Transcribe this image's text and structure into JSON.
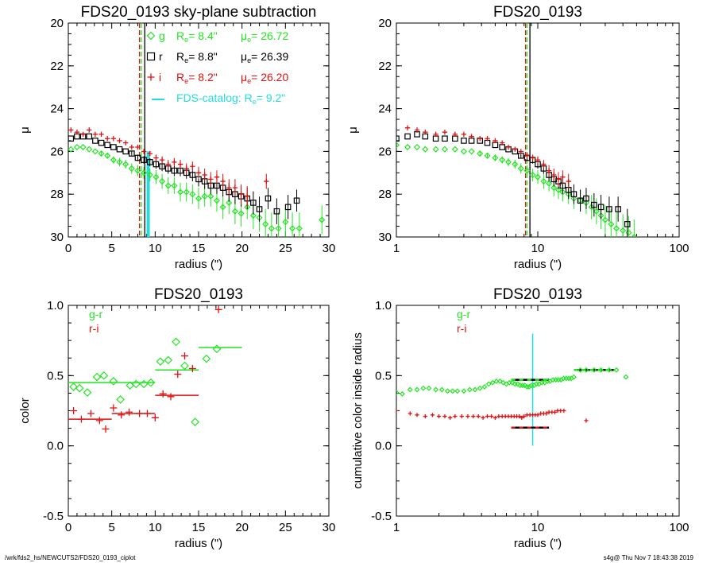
{
  "footer": {
    "left": "/wrk/fds2_hs/NEWCUTS2/FDS20_0193_ciplot",
    "right": "s4g@  Thu Nov  7 18:43:38 2019"
  },
  "colors": {
    "g": "#22e622",
    "r": "#000000",
    "i": "#e01010",
    "cat": "#22dddd",
    "axis": "#000000"
  },
  "chart_data": [
    {
      "type": "scatter",
      "title": "FDS20_0193 sky-plane subtraction",
      "xlabel": "radius (\")",
      "ylabel": "μ",
      "xlim": [
        0,
        30
      ],
      "ylim": [
        30,
        20
      ],
      "xticks": [
        0,
        5,
        10,
        15,
        20,
        25,
        30
      ],
      "yticks": [
        20,
        22,
        24,
        26,
        28,
        30
      ],
      "legend": {
        "g": {
          "band": "g",
          "re_label": "R",
          "re_value": "8.4\"",
          "mu_label": "μ",
          "mu_value": "26.72"
        },
        "r": {
          "band": "r",
          "re_label": "R",
          "re_value": "8.8\"",
          "mu_label": "μ",
          "mu_value": "26.39"
        },
        "i": {
          "band": "i",
          "re_label": "R",
          "re_value": "8.2\"",
          "mu_label": "μ",
          "mu_value": "26.20"
        },
        "catalog": {
          "text": "FDS-catalog: R",
          "value": "9.2\""
        }
      },
      "vlines": [
        {
          "series": "g",
          "x": 8.4,
          "style": "dashed"
        },
        {
          "series": "r",
          "x": 8.8,
          "style": "solid"
        },
        {
          "series": "i",
          "x": 8.2,
          "style": "dashed"
        }
      ],
      "catalog_bar": {
        "x": 9.2,
        "y_from": 26.0,
        "y_to": 30
      },
      "series": [
        {
          "name": "g",
          "marker": "diamond",
          "x": [
            0.3,
            1,
            1.7,
            2.4,
            3.1,
            3.8,
            4.5,
            5.2,
            5.9,
            6.6,
            7.3,
            8,
            8.7,
            9.4,
            10.1,
            10.8,
            11.5,
            12.2,
            12.9,
            13.6,
            14.3,
            15,
            15.7,
            16.4,
            17.1,
            17.8,
            18.5,
            19.2,
            19.9,
            20.6,
            21.3,
            22,
            22.7,
            23.4,
            24.2,
            25,
            25.8,
            26.6,
            29.2
          ],
          "y": [
            25.9,
            25.8,
            25.8,
            25.9,
            26.0,
            26.1,
            26.2,
            26.4,
            26.5,
            26.6,
            26.8,
            26.9,
            27.0,
            27.1,
            27.2,
            27.4,
            27.6,
            27.6,
            27.9,
            27.9,
            28.0,
            28.2,
            28.1,
            28.1,
            28.3,
            28.6,
            28.4,
            28.8,
            28.9,
            28.6,
            29.0,
            29.1,
            29.4,
            29.6,
            29.6,
            29.3,
            29.6,
            29.6,
            29.2
          ]
        },
        {
          "name": "r",
          "marker": "square",
          "x": [
            0.3,
            1,
            1.7,
            2.4,
            3.1,
            3.8,
            4.5,
            5.2,
            5.9,
            6.6,
            7.3,
            8,
            8.7,
            9.4,
            10.1,
            10.8,
            11.5,
            12.2,
            12.9,
            13.6,
            14.3,
            15,
            15.7,
            16.4,
            17.1,
            17.8,
            18.5,
            19.2,
            19.9,
            20.6,
            21.3,
            22,
            23,
            24,
            25.3,
            26.3
          ],
          "y": [
            25.4,
            25.3,
            25.3,
            25.3,
            25.5,
            25.6,
            25.7,
            25.8,
            25.9,
            26.0,
            26.1,
            26.3,
            26.4,
            26.5,
            26.6,
            26.7,
            26.8,
            26.9,
            26.9,
            27.0,
            27.1,
            27.3,
            27.4,
            27.6,
            27.6,
            27.7,
            27.9,
            28.0,
            28.1,
            28.2,
            28.4,
            28.7,
            28.2,
            28.8,
            28.6,
            28.3
          ]
        },
        {
          "name": "i",
          "marker": "plus",
          "x": [
            0.3,
            1,
            1.7,
            2.4,
            3.1,
            3.8,
            4.5,
            5.2,
            5.9,
            6.6,
            7.3,
            8,
            8.7,
            9.4,
            10.1,
            10.8,
            11.5,
            12.2,
            12.9,
            13.6,
            14.3,
            15,
            15.7,
            16.4,
            17.1,
            17.8,
            18.5,
            19.2,
            19.9,
            20.6,
            22.8
          ],
          "y": [
            25.0,
            25.1,
            25.2,
            25.0,
            25.2,
            25.2,
            25.4,
            25.4,
            25.5,
            25.6,
            25.8,
            25.8,
            26.0,
            26.1,
            26.3,
            26.4,
            26.6,
            26.5,
            26.6,
            26.8,
            26.7,
            27.0,
            27.1,
            27.3,
            27.2,
            27.4,
            27.7,
            27.7,
            28.0,
            28.1,
            27.4
          ]
        }
      ]
    },
    {
      "type": "scatter",
      "title": "FDS20_0193",
      "xlabel": "radius (\")",
      "ylabel": "μ",
      "xscale": "log",
      "xlim": [
        1,
        100
      ],
      "ylim": [
        30,
        20
      ],
      "xticks": [
        1,
        10,
        100
      ],
      "yticks": [
        20,
        22,
        24,
        26,
        28,
        30
      ],
      "vlines": [
        {
          "series": "g",
          "x": 8.4,
          "style": "dashed"
        },
        {
          "series": "r",
          "x": 8.8,
          "style": "solid"
        },
        {
          "series": "i",
          "x": 8.2,
          "style": "dashed"
        }
      ],
      "series": [
        {
          "name": "g",
          "marker": "diamond",
          "x": [
            1,
            1.2,
            1.4,
            1.6,
            1.9,
            2.2,
            2.6,
            3.0,
            3.4,
            3.9,
            4.4,
            5.0,
            5.6,
            6.2,
            6.9,
            7.6,
            8.4,
            9.2,
            10,
            11,
            12,
            13,
            14,
            15,
            16.5,
            18,
            20,
            22,
            24,
            26,
            28,
            30,
            33,
            36,
            40,
            44,
            48
          ],
          "y": [
            25.7,
            25.8,
            25.8,
            25.9,
            25.9,
            25.9,
            25.9,
            26.0,
            26.0,
            26.1,
            26.2,
            26.3,
            26.4,
            26.5,
            26.6,
            26.8,
            26.9,
            27.1,
            27.2,
            27.4,
            27.5,
            27.7,
            27.8,
            27.9,
            28.0,
            28.2,
            28.3,
            28.4,
            28.6,
            28.8,
            29.0,
            29.2,
            29.4,
            29.6,
            29.7,
            29.8,
            30.0
          ]
        },
        {
          "name": "r",
          "marker": "square",
          "x": [
            1,
            1.2,
            1.4,
            1.6,
            1.9,
            2.2,
            2.6,
            3.0,
            3.4,
            3.9,
            4.4,
            5.0,
            5.6,
            6.2,
            6.9,
            7.6,
            8.4,
            9.2,
            10,
            11,
            12,
            13,
            14,
            15,
            16.5,
            18,
            20,
            22,
            25,
            28,
            32,
            37,
            43
          ],
          "y": [
            25.4,
            25.3,
            25.2,
            25.3,
            25.4,
            25.4,
            25.4,
            25.5,
            25.5,
            25.5,
            25.6,
            25.7,
            25.8,
            25.9,
            26.0,
            26.2,
            26.3,
            26.4,
            26.6,
            26.8,
            27.1,
            27.3,
            27.4,
            27.6,
            27.8,
            28.0,
            28.3,
            28.2,
            28.5,
            28.6,
            28.7,
            28.7,
            29.4
          ]
        },
        {
          "name": "i",
          "marker": "plus",
          "x": [
            1.2,
            1.4,
            1.6,
            1.9,
            2.2,
            2.6,
            3.0,
            3.4,
            3.9,
            4.4,
            5.0,
            5.6,
            6.2,
            6.9,
            7.6,
            8.4,
            9.2,
            10,
            11,
            12,
            13,
            14,
            15,
            16.5
          ],
          "y": [
            24.9,
            25.0,
            25.1,
            25.2,
            25.1,
            25.2,
            25.2,
            25.3,
            25.4,
            25.4,
            25.5,
            25.6,
            25.8,
            25.9,
            26.0,
            26.2,
            26.3,
            26.4,
            26.6,
            26.9,
            27.1,
            27.3,
            27.2,
            27.4
          ]
        }
      ]
    },
    {
      "type": "scatter",
      "title": "FDS20_0193",
      "xlabel": "radius (\")",
      "ylabel": "color",
      "xlim": [
        0,
        30
      ],
      "ylim": [
        -0.5,
        1.0
      ],
      "xticks": [
        0,
        5,
        10,
        15,
        20,
        25,
        30
      ],
      "yticks": [
        -0.5,
        0.0,
        0.5,
        1.0
      ],
      "legend": [
        "g-r",
        "r-i"
      ],
      "series": [
        {
          "name": "g-r",
          "marker": "diamond",
          "x": [
            0.6,
            1.3,
            2.2,
            3.3,
            4.1,
            5.2,
            6.0,
            7.1,
            7.8,
            8.7,
            9.5,
            10.6,
            11.5,
            12.4,
            13.4,
            14.6,
            15.9,
            17.1
          ],
          "y": [
            0.42,
            0.41,
            0.38,
            0.49,
            0.5,
            0.46,
            0.33,
            0.43,
            0.44,
            0.44,
            0.45,
            0.6,
            0.61,
            0.74,
            0.57,
            0.17,
            0.62,
            0.69
          ]
        },
        {
          "name": "r-i",
          "marker": "plus",
          "x": [
            0.6,
            1.5,
            2.6,
            3.6,
            4.3,
            5.2,
            6.1,
            7.0,
            8.2,
            9.1,
            10.0,
            10.9,
            11.8,
            12.6,
            13.4,
            14.3,
            17.3
          ],
          "y": [
            0.25,
            0.19,
            0.23,
            0.18,
            0.12,
            0.27,
            0.22,
            0.24,
            0.23,
            0.23,
            0.2,
            0.37,
            0.35,
            0.51,
            0.64,
            0.55,
            0.97
          ]
        }
      ],
      "mean_segments": [
        {
          "series": "g-r",
          "x0": 0,
          "x1": 10,
          "y": 0.45
        },
        {
          "series": "g-r",
          "x0": 10,
          "x1": 15,
          "y": 0.54
        },
        {
          "series": "g-r",
          "x0": 15,
          "x1": 20,
          "y": 0.7
        },
        {
          "series": "r-i",
          "x0": 0,
          "x1": 5,
          "y": 0.19
        },
        {
          "series": "r-i",
          "x0": 5,
          "x1": 10,
          "y": 0.23
        },
        {
          "series": "r-i",
          "x0": 10,
          "x1": 15,
          "y": 0.36
        }
      ]
    },
    {
      "type": "scatter",
      "title": "FDS20_0193",
      "xlabel": "radius (\")",
      "ylabel": "cumulative color inside radius",
      "xscale": "log",
      "xlim": [
        1,
        100
      ],
      "ylim": [
        -0.5,
        1.0
      ],
      "xticks": [
        1,
        10,
        100
      ],
      "yticks": [
        -0.5,
        0.0,
        0.5,
        1.0
      ],
      "legend": [
        "g-r",
        "r-i"
      ],
      "catalog_vline": {
        "x": 9.2,
        "y_from": 0.0,
        "y_to": 0.8
      },
      "series": [
        {
          "name": "g-r",
          "marker": "diamond",
          "x": [
            1.0,
            1.1,
            1.25,
            1.4,
            1.55,
            1.7,
            1.9,
            2.1,
            2.3,
            2.5,
            2.7,
            3.0,
            3.3,
            3.6,
            3.9,
            4.2,
            4.5,
            4.8,
            5.1,
            5.4,
            5.7,
            6.0,
            6.3,
            6.6,
            6.9,
            7.2,
            7.5,
            7.8,
            8.1,
            8.4,
            8.7,
            9.0,
            9.4,
            9.8,
            10.2,
            10.7,
            11.2,
            11.7,
            12.2,
            12.8,
            13.4,
            14,
            14.6,
            15.2,
            15.9,
            16.6,
            17.3,
            18.0,
            20,
            22,
            25,
            28,
            32,
            36,
            42
          ],
          "y": [
            0.38,
            0.37,
            0.4,
            0.4,
            0.41,
            0.41,
            0.4,
            0.4,
            0.39,
            0.39,
            0.39,
            0.39,
            0.4,
            0.4,
            0.41,
            0.42,
            0.44,
            0.45,
            0.46,
            0.46,
            0.45,
            0.44,
            0.45,
            0.45,
            0.44,
            0.44,
            0.43,
            0.43,
            0.43,
            0.42,
            0.42,
            0.43,
            0.43,
            0.44,
            0.44,
            0.45,
            0.45,
            0.46,
            0.46,
            0.47,
            0.47,
            0.47,
            0.47,
            0.48,
            0.48,
            0.48,
            0.48,
            0.49,
            0.54,
            0.54,
            0.54,
            0.54,
            0.54,
            0.54,
            0.49
          ]
        },
        {
          "name": "r-i",
          "marker": "plus",
          "x": [
            1.0,
            1.25,
            1.4,
            1.6,
            1.8,
            2.0,
            2.2,
            2.4,
            2.6,
            2.9,
            3.2,
            3.5,
            3.8,
            4.1,
            4.4,
            4.7,
            5.0,
            5.3,
            5.6,
            5.9,
            6.2,
            6.5,
            6.8,
            7.1,
            7.4,
            7.7,
            8.0,
            8.4,
            8.8,
            9.2,
            9.6,
            10.0,
            10.5,
            11.0,
            11.5,
            12.0,
            12.6,
            13.2,
            13.8,
            14.5,
            15.3,
            22
          ],
          "y": [
            0.25,
            0.23,
            0.22,
            0.21,
            0.22,
            0.21,
            0.21,
            0.2,
            0.21,
            0.21,
            0.21,
            0.21,
            0.21,
            0.2,
            0.21,
            0.21,
            0.2,
            0.21,
            0.21,
            0.21,
            0.21,
            0.21,
            0.21,
            0.21,
            0.21,
            0.2,
            0.21,
            0.22,
            0.22,
            0.22,
            0.22,
            0.22,
            0.23,
            0.23,
            0.23,
            0.24,
            0.24,
            0.24,
            0.25,
            0.25,
            0.25,
            0.18
          ]
        }
      ],
      "mean_segments": [
        {
          "series": "g-r",
          "x0": 6.5,
          "x1": 12,
          "y": 0.47,
          "dashed": true
        },
        {
          "series": "g-r",
          "x0": 18,
          "x1": 35,
          "y": 0.54,
          "dashed": true
        },
        {
          "series": "r-i",
          "x0": 6.5,
          "x1": 12,
          "y": 0.13,
          "dashed": true
        }
      ]
    }
  ]
}
